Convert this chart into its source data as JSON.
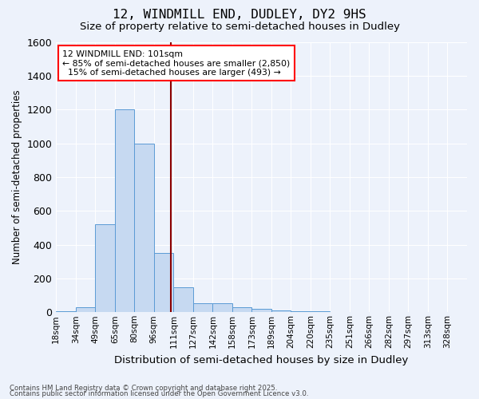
{
  "title1": "12, WINDMILL END, DUDLEY, DY2 9HS",
  "title2": "Size of property relative to semi-detached houses in Dudley",
  "xlabel": "Distribution of semi-detached houses by size in Dudley",
  "ylabel": "Number of semi-detached properties",
  "bin_labels": [
    "18sqm",
    "34sqm",
    "49sqm",
    "65sqm",
    "80sqm",
    "96sqm",
    "111sqm",
    "127sqm",
    "142sqm",
    "158sqm",
    "173sqm",
    "189sqm",
    "204sqm",
    "220sqm",
    "235sqm",
    "251sqm",
    "266sqm",
    "282sqm",
    "297sqm",
    "313sqm",
    "328sqm"
  ],
  "bar_values": [
    5,
    30,
    520,
    1200,
    1000,
    350,
    150,
    55,
    55,
    30,
    20,
    10,
    5,
    5,
    0,
    0,
    0,
    0,
    0,
    0,
    0
  ],
  "bar_color": "#c6d9f1",
  "bar_edge_color": "#5b9bd5",
  "red_line_x": 5.85,
  "annotation_line1": "12 WINDMILL END: 101sqm",
  "annotation_line2": "← 85% of semi-detached houses are smaller (2,850)",
  "annotation_line3": "  15% of semi-detached houses are larger (493) →",
  "annotation_box_color": "white",
  "annotation_box_edge": "red",
  "ylim": [
    0,
    1600
  ],
  "yticks": [
    0,
    200,
    400,
    600,
    800,
    1000,
    1200,
    1400,
    1600
  ],
  "footer_line1": "Contains HM Land Registry data © Crown copyright and database right 2025.",
  "footer_line2": "Contains public sector information licensed under the Open Government Licence v3.0.",
  "bg_color": "#edf2fb",
  "plot_bg_color": "#edf2fb"
}
